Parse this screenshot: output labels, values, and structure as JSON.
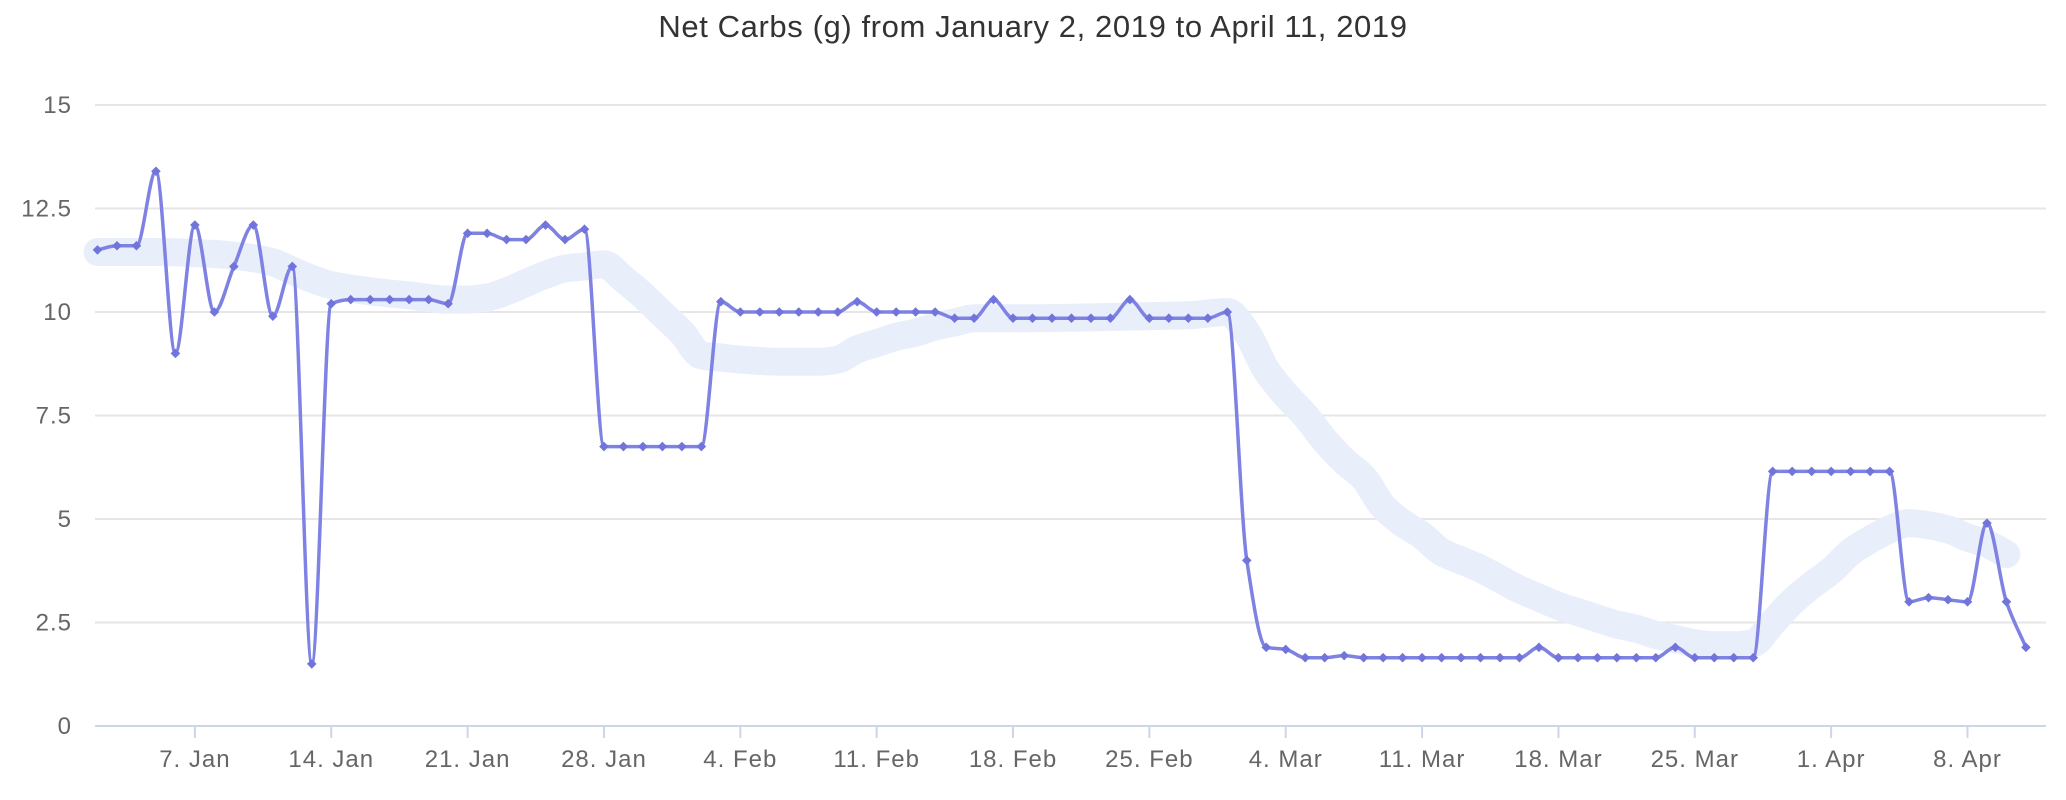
{
  "chart": {
    "title": "Net Carbs (g) from January 2, 2019 to April 11, 2019",
    "colors": {
      "line": "#7e82e3",
      "marker": "#7174da",
      "band": "#e9eefb",
      "grid": "#e6e6e6",
      "axis": "#ccd6eb",
      "tick_label": "#666666",
      "title": "#333333",
      "background": "#ffffff"
    }
  },
  "chart_data": {
    "type": "line",
    "title": "Net Carbs (g) from January 2, 2019 to April 11, 2019",
    "xlabel": "",
    "ylabel": "",
    "ylim": [
      0,
      15
    ],
    "grid": true,
    "legend": "none",
    "yticks": [
      0,
      2.5,
      5,
      7.5,
      10,
      12.5,
      15
    ],
    "ytick_labels": [
      "0",
      "2.5",
      "5",
      "7.5",
      "10",
      "12.5",
      "15"
    ],
    "xticks": [
      {
        "day": 5,
        "label": "7. Jan"
      },
      {
        "day": 12,
        "label": "14. Jan"
      },
      {
        "day": 19,
        "label": "21. Jan"
      },
      {
        "day": 26,
        "label": "28. Jan"
      },
      {
        "day": 33,
        "label": "4. Feb"
      },
      {
        "day": 40,
        "label": "11. Feb"
      },
      {
        "day": 47,
        "label": "18. Feb"
      },
      {
        "day": 54,
        "label": "25. Feb"
      },
      {
        "day": 61,
        "label": "4. Mar"
      },
      {
        "day": 68,
        "label": "11. Mar"
      },
      {
        "day": 75,
        "label": "18. Mar"
      },
      {
        "day": 82,
        "label": "25. Mar"
      },
      {
        "day": 89,
        "label": "1. Apr"
      },
      {
        "day": 96,
        "label": "8. Apr"
      }
    ],
    "dates": [
      "2019-01-02",
      "2019-01-03",
      "2019-01-04",
      "2019-01-05",
      "2019-01-06",
      "2019-01-07",
      "2019-01-08",
      "2019-01-09",
      "2019-01-10",
      "2019-01-11",
      "2019-01-12",
      "2019-01-13",
      "2019-01-14",
      "2019-01-15",
      "2019-01-16",
      "2019-01-17",
      "2019-01-18",
      "2019-01-19",
      "2019-01-20",
      "2019-01-21",
      "2019-01-22",
      "2019-01-23",
      "2019-01-24",
      "2019-01-25",
      "2019-01-26",
      "2019-01-27",
      "2019-01-28",
      "2019-01-29",
      "2019-01-30",
      "2019-01-31",
      "2019-02-01",
      "2019-02-02",
      "2019-02-03",
      "2019-02-04",
      "2019-02-05",
      "2019-02-06",
      "2019-02-07",
      "2019-02-08",
      "2019-02-09",
      "2019-02-10",
      "2019-02-11",
      "2019-02-12",
      "2019-02-13",
      "2019-02-14",
      "2019-02-15",
      "2019-02-16",
      "2019-02-17",
      "2019-02-18",
      "2019-02-19",
      "2019-02-20",
      "2019-02-21",
      "2019-02-22",
      "2019-02-23",
      "2019-02-24",
      "2019-02-25",
      "2019-02-26",
      "2019-02-27",
      "2019-02-28",
      "2019-03-01",
      "2019-03-02",
      "2019-03-03",
      "2019-03-04",
      "2019-03-05",
      "2019-03-06",
      "2019-03-07",
      "2019-03-08",
      "2019-03-09",
      "2019-03-10",
      "2019-03-11",
      "2019-03-12",
      "2019-03-13",
      "2019-03-14",
      "2019-03-15",
      "2019-03-16",
      "2019-03-17",
      "2019-03-18",
      "2019-03-19",
      "2019-03-20",
      "2019-03-21",
      "2019-03-22",
      "2019-03-23",
      "2019-03-24",
      "2019-03-25",
      "2019-03-26",
      "2019-03-27",
      "2019-03-28",
      "2019-03-29",
      "2019-03-30",
      "2019-03-31",
      "2019-04-01",
      "2019-04-02",
      "2019-04-03",
      "2019-04-04",
      "2019-04-05",
      "2019-04-06",
      "2019-04-07",
      "2019-04-08",
      "2019-04-09",
      "2019-04-10",
      "2019-04-11"
    ],
    "series": [
      {
        "name": "Net Carbs (g)",
        "type": "spline",
        "color": "#7e82e3",
        "marker": "diamond",
        "values": [
          11.5,
          11.6,
          11.6,
          13.4,
          9.0,
          12.1,
          10.0,
          11.1,
          12.1,
          9.9,
          11.1,
          1.5,
          10.2,
          10.3,
          10.3,
          10.3,
          10.3,
          10.3,
          10.2,
          11.9,
          11.9,
          11.75,
          11.75,
          12.1,
          11.75,
          12.0,
          6.75,
          6.75,
          6.75,
          6.75,
          6.75,
          6.75,
          10.25,
          10.0,
          10.0,
          10.0,
          10.0,
          10.0,
          10.0,
          10.25,
          10.0,
          10.0,
          10.0,
          10.0,
          9.85,
          9.85,
          10.3,
          9.85,
          9.85,
          9.85,
          9.85,
          9.85,
          9.85,
          10.3,
          9.85,
          9.85,
          9.85,
          9.85,
          10.0,
          4.0,
          1.9,
          1.85,
          1.65,
          1.65,
          1.7,
          1.65,
          1.65,
          1.65,
          1.65,
          1.65,
          1.65,
          1.65,
          1.65,
          1.65,
          1.9,
          1.65,
          1.65,
          1.65,
          1.65,
          1.65,
          1.65,
          1.9,
          1.65,
          1.65,
          1.65,
          1.65,
          6.15,
          6.15,
          6.15,
          6.15,
          6.15,
          6.15,
          6.15,
          3.0,
          3.1,
          3.05,
          3.0,
          4.9,
          3.0,
          1.9
        ]
      },
      {
        "name": "smoothed trend band",
        "type": "band",
        "color": "#e9eefb",
        "points": [
          [
            0,
            11.45
          ],
          [
            3,
            11.45
          ],
          [
            6,
            11.4
          ],
          [
            8,
            11.3
          ],
          [
            9,
            11.2
          ],
          [
            10,
            11.0
          ],
          [
            11,
            10.8
          ],
          [
            12,
            10.65
          ],
          [
            14,
            10.5
          ],
          [
            16,
            10.4
          ],
          [
            18,
            10.3
          ],
          [
            19,
            10.3
          ],
          [
            20,
            10.35
          ],
          [
            21,
            10.5
          ],
          [
            22,
            10.7
          ],
          [
            23,
            10.9
          ],
          [
            24,
            11.05
          ],
          [
            25,
            11.1
          ],
          [
            26,
            11.15
          ],
          [
            27,
            10.8
          ],
          [
            28,
            10.4
          ],
          [
            29,
            9.95
          ],
          [
            30,
            9.5
          ],
          [
            31,
            8.95
          ],
          [
            32,
            8.9
          ],
          [
            33,
            8.85
          ],
          [
            35,
            8.8
          ],
          [
            37,
            8.8
          ],
          [
            38,
            8.85
          ],
          [
            39,
            9.1
          ],
          [
            40,
            9.25
          ],
          [
            41,
            9.4
          ],
          [
            42,
            9.5
          ],
          [
            43,
            9.65
          ],
          [
            44,
            9.75
          ],
          [
            45,
            9.85
          ],
          [
            48,
            9.85
          ],
          [
            51,
            9.87
          ],
          [
            54,
            9.9
          ],
          [
            56,
            9.92
          ],
          [
            58,
            10.0
          ],
          [
            59,
            9.5
          ],
          [
            60,
            8.6
          ],
          [
            61,
            8.0
          ],
          [
            62,
            7.5
          ],
          [
            63,
            6.9
          ],
          [
            64,
            6.4
          ],
          [
            65,
            6.0
          ],
          [
            66,
            5.3
          ],
          [
            67,
            4.9
          ],
          [
            68,
            4.6
          ],
          [
            69,
            4.2
          ],
          [
            70,
            4.0
          ],
          [
            71,
            3.8
          ],
          [
            72,
            3.55
          ],
          [
            73,
            3.3
          ],
          [
            74,
            3.1
          ],
          [
            75,
            2.9
          ],
          [
            76,
            2.75
          ],
          [
            77,
            2.6
          ],
          [
            78,
            2.45
          ],
          [
            79,
            2.35
          ],
          [
            80,
            2.2
          ],
          [
            81,
            2.1
          ],
          [
            82,
            2.0
          ],
          [
            83,
            1.95
          ],
          [
            84,
            1.95
          ],
          [
            85,
            2.0
          ],
          [
            86,
            2.5
          ],
          [
            87,
            3.0
          ],
          [
            88,
            3.4
          ],
          [
            89,
            3.75
          ],
          [
            90,
            4.2
          ],
          [
            91,
            4.5
          ],
          [
            92,
            4.75
          ],
          [
            93,
            4.9
          ],
          [
            94,
            4.85
          ],
          [
            95,
            4.75
          ],
          [
            96,
            4.55
          ],
          [
            97,
            4.4
          ],
          [
            98,
            4.15
          ]
        ]
      }
    ]
  }
}
